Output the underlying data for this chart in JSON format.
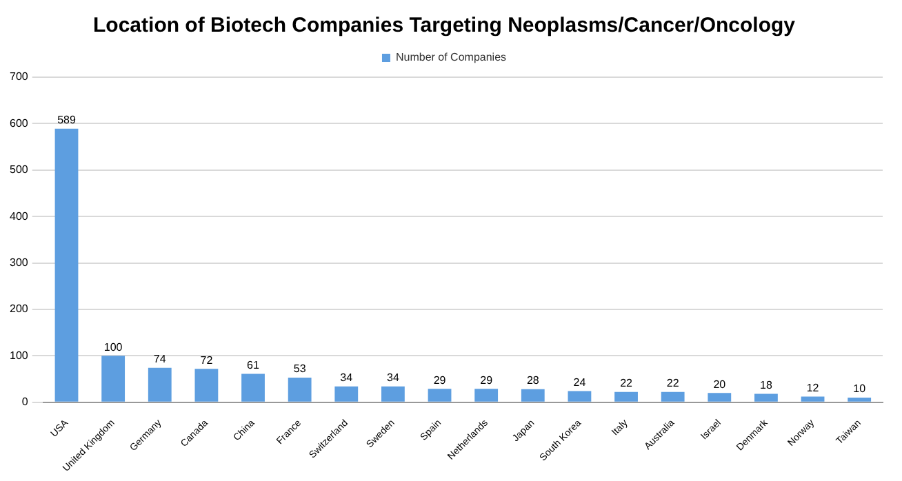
{
  "chart_data": {
    "type": "bar",
    "title": "Location of Biotech Companies Targeting Neoplasms/Cancer/Oncology",
    "categories": [
      "USA",
      "United Kingdom",
      "Germany",
      "Canada",
      "China",
      "France",
      "Switzerland",
      "Sweden",
      "Spain",
      "Netherlands",
      "Japan",
      "South Korea",
      "Italy",
      "Australia",
      "Israel",
      "Denmark",
      "Norway",
      "Taiwan"
    ],
    "series": [
      {
        "name": "Number of Companies",
        "color": "#5d9ee0",
        "values": [
          589,
          100,
          74,
          72,
          61,
          53,
          34,
          34,
          29,
          29,
          28,
          24,
          22,
          22,
          20,
          18,
          12,
          10
        ]
      }
    ],
    "ylim": [
      0,
      700
    ],
    "yticks": [
      0,
      100,
      200,
      300,
      400,
      500,
      600,
      700
    ],
    "grid": "y",
    "legend": "top",
    "data_labels": true
  }
}
